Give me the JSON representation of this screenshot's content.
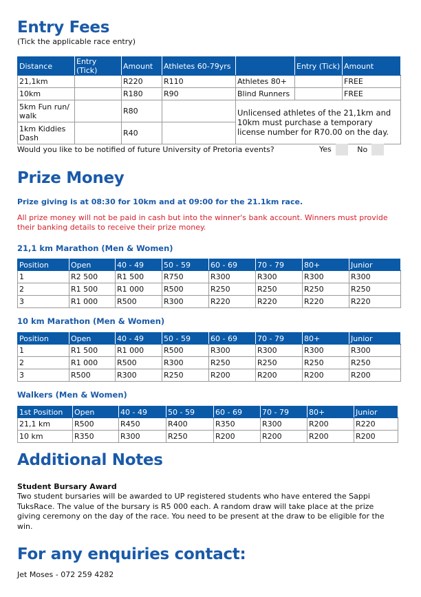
{
  "entry": {
    "title": "Entry Fees",
    "subtitle": "(Tick the applicable race entry)",
    "headers": [
      "Distance",
      "Entry (Tick)",
      "Amount",
      "Athletes 60-79yrs",
      "",
      "Entry (Tick)",
      "Amount"
    ],
    "rows": [
      [
        "21,1km",
        "",
        "R220",
        "R110",
        "Athletes 80+",
        "",
        "FREE"
      ],
      [
        "10km",
        "",
        "R180",
        "R90",
        "Blind Runners",
        "",
        "FREE"
      ]
    ],
    "rows2": [
      [
        "5km Fun run/ walk",
        "",
        "R80",
        ""
      ],
      [
        "1km Kiddies Dash",
        "",
        "R40",
        ""
      ]
    ],
    "note": "Unlicensed athletes of the 21,1km and 10km must purchase a temporary license number for R70.00 on the day.",
    "notify_question": "Would you like to be notified of future University of Pretoria events?",
    "yes": "Yes",
    "no": "No"
  },
  "prize": {
    "title": "Prize Money",
    "giving": "Prize giving is at 08:30 for 10km and at 09:00 for the 21.1km race.",
    "warning": "All prize money will not be paid in cash but into the winner's bank account. Winners must provide their banking details to receive their prize money.",
    "tables": [
      {
        "title": "21,1 km Marathon (Men & Women)",
        "headers": [
          "Position",
          "Open",
          "40 - 49",
          "50 - 59",
          "60 - 69",
          "70 - 79",
          "80+",
          "Junior"
        ],
        "rows": [
          [
            "1",
            "R2 500",
            "R1 500",
            "R750",
            "R300",
            "R300",
            "R300",
            "R300"
          ],
          [
            "2",
            "R1 500",
            "R1 000",
            "R500",
            "R250",
            "R250",
            "R250",
            "R250"
          ],
          [
            "3",
            "R1 000",
            "R500",
            "R300",
            "R220",
            "R220",
            "R220",
            "R220"
          ]
        ]
      },
      {
        "title": "10 km Marathon (Men & Women)",
        "headers": [
          "Position",
          "Open",
          "40 - 49",
          "50 - 59",
          "60 - 69",
          "70 - 79",
          "80+",
          "Junior"
        ],
        "rows": [
          [
            "1",
            "R1 500",
            "R1 000",
            "R500",
            "R300",
            "R300",
            "R300",
            "R300"
          ],
          [
            "2",
            "R1 000",
            "R500",
            "R300",
            "R250",
            "R250",
            "R250",
            "R250"
          ],
          [
            "3",
            "R500",
            "R300",
            "R250",
            "R200",
            "R200",
            "R200",
            "R200"
          ]
        ]
      },
      {
        "title": "Walkers (Men & Women)",
        "headers": [
          "1st Position",
          "Open",
          "40 - 49",
          "50 - 59",
          "60 - 69",
          "70 - 79",
          "80+",
          "Junior"
        ],
        "rows": [
          [
            "21,1 km",
            "R500",
            "R450",
            "R400",
            "R350",
            "R300",
            "R200",
            "R220"
          ],
          [
            "10 km",
            "R350",
            "R300",
            "R250",
            "R200",
            "R200",
            "R200",
            "R200"
          ]
        ]
      }
    ]
  },
  "notes": {
    "title": "Additional Notes",
    "award_title": "Student Bursary Award",
    "award_text": "Two student bursaries will be awarded to UP registered students who have entered the Sappi TuksRace. The value of the bursary is R5 000 each. A random draw will take place at the prize giving ceremony on the day of the race. You need to be present at the draw to be eligible for the win."
  },
  "contact": {
    "title": "For any enquiries contact:",
    "person": "Jet Moses - 072 259 4282"
  }
}
